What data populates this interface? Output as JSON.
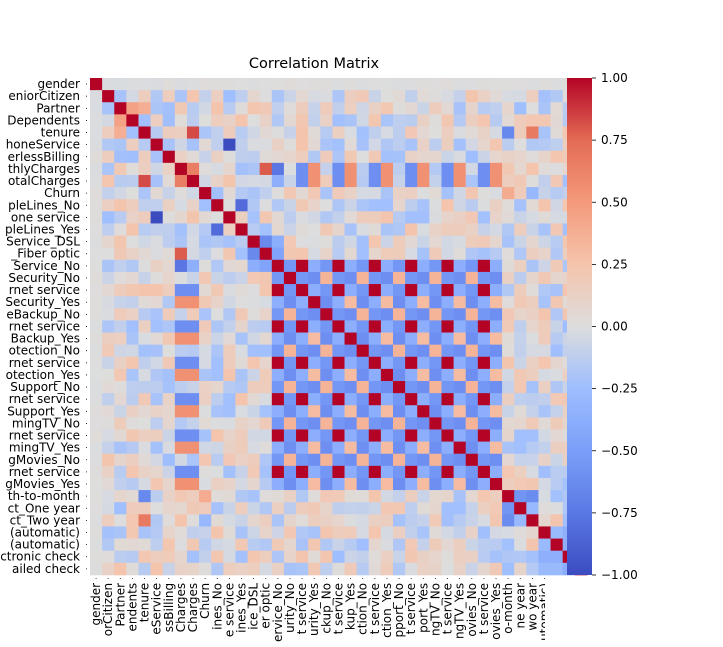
{
  "chart_data": {
    "type": "heatmap",
    "title": "Correlation Matrix",
    "variables": [
      "gender",
      "SeniorCitizen",
      "Partner",
      "Dependents",
      "tenure",
      "PhoneService",
      "PaperlessBilling",
      "MonthlyCharges",
      "TotalCharges",
      "Churn",
      "MultipleLines_No",
      "MultipleLines_No phone service",
      "MultipleLines_Yes",
      "InternetService_DSL",
      "InternetService_Fiber optic",
      "InternetService_No",
      "OnlineSecurity_No",
      "OnlineSecurity_No internet service",
      "OnlineSecurity_Yes",
      "OnlineBackup_No",
      "OnlineBackup_No internet service",
      "OnlineBackup_Yes",
      "DeviceProtection_No",
      "DeviceProtection_No internet service",
      "DeviceProtection_Yes",
      "TechSupport_No",
      "TechSupport_No internet service",
      "TechSupport_Yes",
      "StreamingTV_No",
      "StreamingTV_No internet service",
      "StreamingTV_Yes",
      "StreamingMovies_No",
      "StreamingMovies_No internet service",
      "StreamingMovies_Yes",
      "Contract_Month-to-month",
      "Contract_One year",
      "Contract_Two year",
      "PaymentMethod_Bank transfer (automatic)",
      "PaymentMethod_Credit card (automatic)",
      "PaymentMethod_Electronic check",
      "PaymentMethod_Mailed check"
    ],
    "y_tick_labels": [
      "gender",
      "eniorCitizen",
      "Partner",
      "Dependents",
      "tenure",
      "honeService",
      "erlessBilling",
      "thlyCharges",
      "otalCharges",
      "Churn",
      "pleLines_No",
      "one service",
      "pleLines_Yes",
      "Service_DSL",
      "_Fiber optic",
      "Service_No",
      "Security_No",
      "rnet service",
      "Security_Yes",
      "eBackup_No",
      "rnet service",
      "Backup_Yes",
      "otection_No",
      "rnet service",
      "otection_Yes",
      "Support_No",
      "rnet service",
      "Support_Yes",
      "mingTV_No",
      "rnet service",
      "mingTV_Yes",
      "gMovies_No",
      "rnet service",
      "gMovies_Yes",
      "th-to-month",
      "ct_One year",
      "ct_Two year",
      "(automatic)",
      "(automatic)",
      "ctronic check",
      "ailed check"
    ],
    "x_tick_labels": [
      "gender",
      "orCitizen",
      "Partner",
      "endents",
      "tenure",
      "eService",
      "ssBilling",
      "Charges",
      "Charges",
      "Churn",
      "ines_No",
      "e service",
      "ines_Yes",
      "ice_DSL",
      "er optic",
      "ervice_No",
      "urity_No",
      "t service",
      "urity_Yes",
      "ckup_No",
      "t service",
      "kup_Yes",
      "ction_No",
      "t service",
      "ction_Yes",
      "pport_No",
      "t service",
      "port_Yes",
      "ngTV_No",
      "t service",
      "ngTV_Yes",
      "ovies_No",
      "t service",
      "ovies_Yes",
      "o-month",
      "ne year",
      "wo year",
      "utomatic)",
      "utomatic)",
      "nic check",
      "ed check"
    ],
    "colorbar": {
      "colormap": "coolwarm",
      "range": [
        -1,
        1
      ],
      "ticks": [
        "1.00",
        "0.75",
        "0.50",
        "0.25",
        "0.00",
        "−0.25",
        "−0.50",
        "−0.75",
        "−1.00"
      ]
    },
    "values_note_hidden": "",
    "groups": {
      "service_no": [
        16,
        19,
        22,
        25,
        28,
        31
      ],
      "service_ni": [
        15,
        17,
        20,
        23,
        26,
        29,
        32
      ],
      "service_yes": [
        18,
        21,
        24,
        27,
        30,
        33
      ],
      "billing": [
        34,
        35,
        36,
        37,
        38,
        39,
        40
      ]
    }
  }
}
